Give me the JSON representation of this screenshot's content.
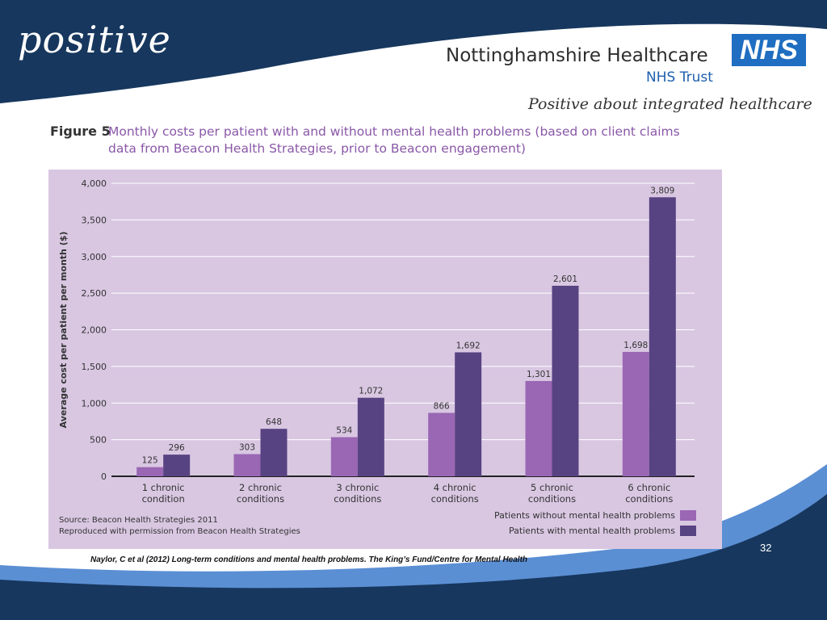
{
  "header": {
    "logo_text": "positive",
    "org_name": "Nottinghamshire Healthcare",
    "trust_name": "NHS Trust",
    "nhs_badge": "NHS",
    "tagline": "Positive about integrated healthcare"
  },
  "figure": {
    "label": "Figure 5",
    "title": "Monthly costs per patient with and without mental health problems (based on client claims data from Beacon Health Strategies, prior to Beacon engagement)"
  },
  "chart_data": {
    "type": "bar",
    "title": "",
    "xlabel": "",
    "ylabel": "Average cost per patient per month ($)",
    "ylim": [
      0,
      4000
    ],
    "yticks": [
      "0",
      "500",
      "1,000",
      "1,500",
      "2,000",
      "2,500",
      "3,000",
      "3,500",
      "4,000"
    ],
    "ytick_values": [
      0,
      500,
      1000,
      1500,
      2000,
      2500,
      3000,
      3500,
      4000
    ],
    "grid": true,
    "legend_position": "bottom-right",
    "categories": [
      [
        "1 chronic",
        "condition"
      ],
      [
        "2 chronic",
        "conditions"
      ],
      [
        "3 chronic",
        "conditions"
      ],
      [
        "4 chronic",
        "conditions"
      ],
      [
        "5 chronic",
        "conditions"
      ],
      [
        "6 chronic",
        "conditions"
      ]
    ],
    "series": [
      {
        "name": "Patients without mental health problems",
        "color": "#9a67b4",
        "values": [
          125,
          303,
          534,
          866,
          1301,
          1698
        ],
        "labels": [
          "125",
          "303",
          "534",
          "866",
          "1,301",
          "1,698"
        ]
      },
      {
        "name": "Patients with mental health problems",
        "color": "#584382",
        "values": [
          296,
          648,
          1072,
          1692,
          2601,
          3809
        ],
        "labels": [
          "296",
          "648",
          "1,072",
          "1,692",
          "2,601",
          "3,809"
        ]
      }
    ],
    "source_lines": [
      "Source: Beacon Health Strategies 2011",
      "Reproduced with permission from Beacon Health Strategies"
    ],
    "background_color": "#d9c7e2"
  },
  "footer": {
    "citation": "Naylor, C et al (2012) Long-term conditions and mental health problems. The King’s Fund/Centre for Mental Health",
    "page_number": "32"
  },
  "colors": {
    "navy": "#17375e",
    "accent_blue": "#5b8fd4",
    "nhs_blue": "#1f6ec1",
    "title_purple": "#8a58a8"
  }
}
